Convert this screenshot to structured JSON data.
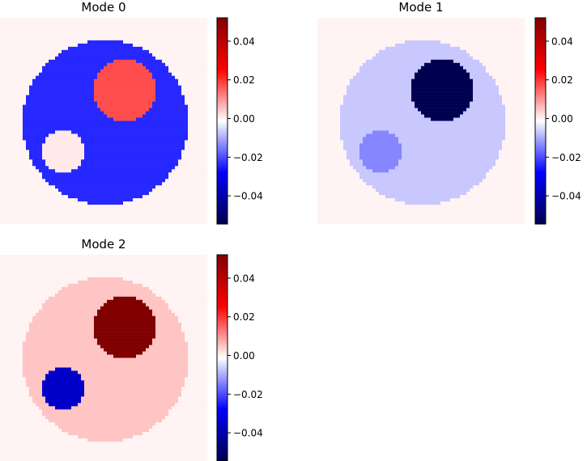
{
  "chart_data": [
    {
      "type": "heatmap",
      "title": "Mode 0",
      "colormap": "seismic",
      "grid_size": [
        64,
        64
      ],
      "colorbar": {
        "vmin": -0.0546,
        "vmax": 0.0521,
        "ticks": [
          0.04,
          0.02,
          0.0,
          -0.02,
          -0.04
        ],
        "tick_labels": [
          "0.04",
          "0.02",
          "0.00",
          "−0.02",
          "−0.04"
        ]
      },
      "regions": [
        {
          "name": "background",
          "value": 0.0
        },
        {
          "name": "large-disk",
          "center": [
            32.5,
            32.5
          ],
          "radius": 25.6,
          "value": -0.0238
        },
        {
          "name": "upper-right-disk",
          "center": [
            38.5,
            22.5
          ],
          "radius": 9.6,
          "value": 0.0174
        },
        {
          "name": "lower-left-disk",
          "center": [
            19.5,
            41.5
          ],
          "radius": 6.6,
          "value": 0.001
        }
      ]
    },
    {
      "type": "heatmap",
      "title": "Mode 1",
      "colormap": "seismic",
      "grid_size": [
        64,
        64
      ],
      "colorbar": {
        "vmin": -0.0546,
        "vmax": 0.0521,
        "ticks": [
          0.04,
          0.02,
          0.0,
          -0.02,
          -0.04
        ],
        "tick_labels": [
          "0.04",
          "0.02",
          "0.00",
          "−0.02",
          "−0.04"
        ]
      },
      "regions": [
        {
          "name": "background",
          "value": 0.0
        },
        {
          "name": "large-disk",
          "center": [
            32.5,
            32.5
          ],
          "radius": 25.6,
          "value": -0.007
        },
        {
          "name": "upper-right-disk",
          "center": [
            38.5,
            22.5
          ],
          "radius": 9.6,
          "value": -0.054
        },
        {
          "name": "lower-left-disk",
          "center": [
            19.5,
            41.5
          ],
          "radius": 6.6,
          "value": -0.0139
        }
      ]
    },
    {
      "type": "heatmap",
      "title": "Mode 2",
      "colormap": "seismic",
      "grid_size": [
        64,
        64
      ],
      "colorbar": {
        "vmin": -0.0546,
        "vmax": 0.0521,
        "ticks": [
          0.04,
          0.02,
          0.0,
          -0.02,
          -0.04
        ],
        "tick_labels": [
          "0.04",
          "0.02",
          "0.00",
          "−0.02",
          "−0.04"
        ]
      },
      "regions": [
        {
          "name": "background",
          "value": 0.0
        },
        {
          "name": "large-disk",
          "center": [
            32.5,
            32.5
          ],
          "radius": 25.6,
          "value": 0.0049
        },
        {
          "name": "upper-right-disk",
          "center": [
            38.5,
            22.5
          ],
          "radius": 9.6,
          "value": 0.052
        },
        {
          "name": "lower-left-disk",
          "center": [
            19.5,
            41.5
          ],
          "radius": 6.6,
          "value": -0.0361
        }
      ]
    }
  ]
}
